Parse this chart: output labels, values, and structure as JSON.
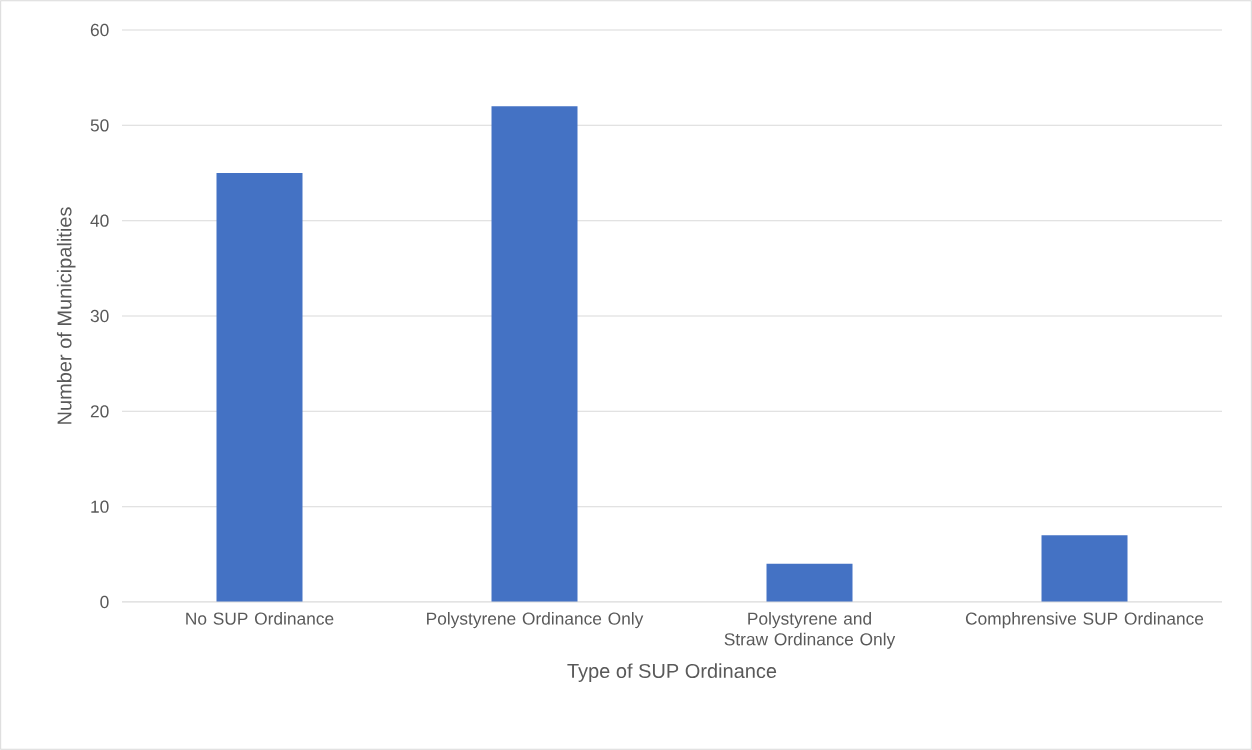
{
  "chart_data": {
    "type": "bar",
    "xlabel": "Type of SUP Ordinance",
    "ylabel": "Number of Municipalities",
    "categories": [
      "No SUP Ordinance",
      "Polystyrene Ordinance Only",
      "Polystyrene and Straw Ordinance Only",
      "Comphrensive SUP Ordinance"
    ],
    "values": [
      45,
      52,
      4,
      7
    ],
    "color": "#4472c4",
    "ylim": [
      0,
      60
    ],
    "yticks": [
      0,
      10,
      20,
      30,
      40,
      50,
      60
    ],
    "grid": "y"
  }
}
